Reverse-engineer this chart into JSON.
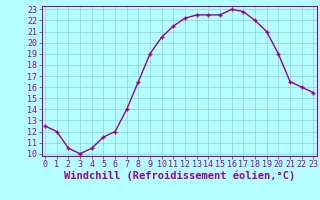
{
  "x": [
    0,
    1,
    2,
    3,
    4,
    5,
    6,
    7,
    8,
    9,
    10,
    11,
    12,
    13,
    14,
    15,
    16,
    17,
    18,
    19,
    20,
    21,
    22,
    23
  ],
  "y": [
    12.5,
    12.0,
    10.5,
    10.0,
    10.5,
    11.5,
    12.0,
    14.0,
    16.5,
    19.0,
    20.5,
    21.5,
    22.2,
    22.5,
    22.5,
    22.5,
    23.0,
    22.8,
    22.0,
    21.0,
    19.0,
    16.5,
    16.0,
    15.5
  ],
  "line_color": "#990099",
  "marker": "+",
  "marker_size": 3,
  "marker_lw": 1.0,
  "line_width": 1.0,
  "bg_color": "#b3ffff",
  "grid_color": "#99cccc",
  "xlabel": "Windchill (Refroidissement éolien,°C)",
  "xlabel_color": "#990099",
  "tick_color": "#990099",
  "spine_color": "#990099",
  "ylim_min": 10,
  "ylim_max": 23,
  "xlim_min": 0,
  "xlim_max": 23,
  "yticks": [
    10,
    11,
    12,
    13,
    14,
    15,
    16,
    17,
    18,
    19,
    20,
    21,
    22,
    23
  ],
  "xticks": [
    0,
    1,
    2,
    3,
    4,
    5,
    6,
    7,
    8,
    9,
    10,
    11,
    12,
    13,
    14,
    15,
    16,
    17,
    18,
    19,
    20,
    21,
    22,
    23
  ],
  "ytick_fontsize": 6.5,
  "xtick_fontsize": 6.0,
  "xlabel_fontsize": 7.5,
  "xlabel_fontweight": "bold"
}
